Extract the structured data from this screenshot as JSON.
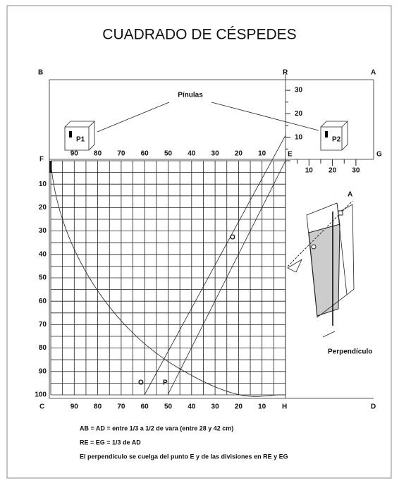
{
  "title": "CUADRADO DE CÉSPEDES",
  "corners": {
    "B": "B",
    "A": "A",
    "R": "R",
    "F": "F",
    "E": "E",
    "G": "G",
    "C": "C",
    "H": "H",
    "D": "D"
  },
  "top_ticks": [
    90,
    80,
    70,
    60,
    50,
    40,
    30,
    20,
    10
  ],
  "left_ticks": [
    10,
    20,
    30,
    40,
    50,
    60,
    70,
    80,
    90,
    100
  ],
  "bottom_ticks": [
    90,
    80,
    70,
    60,
    50,
    40,
    30,
    20,
    10
  ],
  "re_ticks": [
    30,
    20,
    10
  ],
  "eg_ticks": [
    10,
    20,
    30
  ],
  "pinulas": "Pínulas",
  "p1": "P1",
  "p2": "P2",
  "point_o": "O",
  "bottom_points": [
    "O",
    "P"
  ],
  "inset": {
    "a": "A",
    "label": "Perpendículo"
  },
  "notes": [
    "AB = AD = entre 1/3 a 1/2 de vara (entre 28 y 42 cm)",
    "RE = EG = 1/3 de AD",
    "El perpendículo se cuelga del punto E y de las divisiones en RE y EG"
  ]
}
